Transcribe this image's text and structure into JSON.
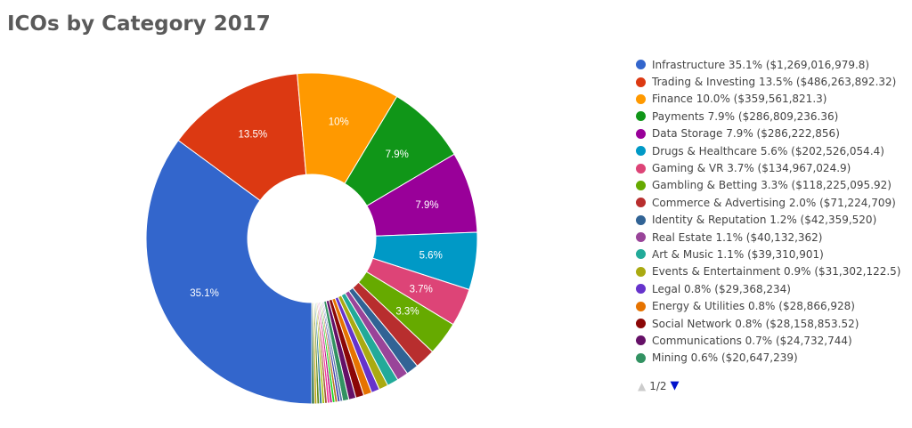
{
  "title": "ICOs by Category 2017",
  "chart_data": {
    "type": "pie",
    "donut": true,
    "title": "ICOs by Category 2017",
    "legend_position": "right",
    "slices": [
      {
        "name": "Infrastructure",
        "percent": 35.1,
        "value": "$1,269,016,979.8",
        "color": "#3366cc",
        "label": "35.1%"
      },
      {
        "name": "Trading & Investing",
        "percent": 13.5,
        "value": "$486,263,892.32",
        "color": "#dc3912",
        "label": "13.5%"
      },
      {
        "name": "Finance",
        "percent": 10.0,
        "value": "$359,561,821.3",
        "color": "#ff9900",
        "label": "10%"
      },
      {
        "name": "Payments",
        "percent": 7.9,
        "value": "$286,809,236.36",
        "color": "#109618",
        "label": "7.9%"
      },
      {
        "name": "Data Storage",
        "percent": 7.9,
        "value": "$286,222,856",
        "color": "#990099",
        "label": "7.9%"
      },
      {
        "name": "Drugs & Healthcare",
        "percent": 5.6,
        "value": "$202,526,054.4",
        "color": "#0099c6",
        "label": "5.6%"
      },
      {
        "name": "Gaming & VR",
        "percent": 3.7,
        "value": "$134,967,024.9",
        "color": "#dd4477",
        "label": "3.7%"
      },
      {
        "name": "Gambling & Betting",
        "percent": 3.3,
        "value": "$118,225,095.92",
        "color": "#66aa00",
        "label": "3.3%"
      },
      {
        "name": "Commerce & Advertising",
        "percent": 2.0,
        "value": "$71,224,709",
        "color": "#b82e2e",
        "label": ""
      },
      {
        "name": "Identity & Reputation",
        "percent": 1.2,
        "value": "$42,359,520",
        "color": "#316395",
        "label": ""
      },
      {
        "name": "Real Estate",
        "percent": 1.1,
        "value": "$40,132,362",
        "color": "#994499",
        "label": ""
      },
      {
        "name": "Art & Music",
        "percent": 1.1,
        "value": "$39,310,901",
        "color": "#22aa99",
        "label": ""
      },
      {
        "name": "Events & Entertainment",
        "percent": 0.9,
        "value": "$31,302,122.5",
        "color": "#aaaa11",
        "label": ""
      },
      {
        "name": "Legal",
        "percent": 0.8,
        "value": "$29,368,234",
        "color": "#6633cc",
        "label": ""
      },
      {
        "name": "Energy & Utilities",
        "percent": 0.8,
        "value": "$28,866,928",
        "color": "#e67300",
        "label": ""
      },
      {
        "name": "Social Network",
        "percent": 0.8,
        "value": "$28,158,853.52",
        "color": "#8b0707",
        "label": ""
      },
      {
        "name": "Communications",
        "percent": 0.7,
        "value": "$24,732,744",
        "color": "#651067",
        "label": ""
      },
      {
        "name": "Mining",
        "percent": 0.6,
        "value": "$20,647,239",
        "color": "#329262",
        "label": ""
      }
    ],
    "hidden_slices": [
      {
        "color": "#5574a6"
      },
      {
        "color": "#3b3eac"
      },
      {
        "color": "#b77322"
      },
      {
        "color": "#16d620"
      },
      {
        "color": "#b91383"
      },
      {
        "color": "#f4359e"
      },
      {
        "color": "#9c5935"
      },
      {
        "color": "#a9c413"
      },
      {
        "color": "#2a778d"
      },
      {
        "color": "#668d1c"
      },
      {
        "color": "#bea413"
      },
      {
        "color": "#0c5922"
      }
    ]
  },
  "legend": {
    "items": [
      "Infrastructure 35.1% ($1,269,016,979.8)",
      "Trading & Investing 13.5% ($486,263,892.32)",
      "Finance 10.0% ($359,561,821.3)",
      "Payments 7.9% ($286,809,236.36)",
      "Data Storage 7.9% ($286,222,856)",
      "Drugs & Healthcare 5.6% ($202,526,054.4)",
      "Gaming & VR 3.7% ($134,967,024.9)",
      "Gambling & Betting 3.3% ($118,225,095.92)",
      "Commerce & Advertising 2.0% ($71,224,709)",
      "Identity & Reputation 1.2% ($42,359,520)",
      "Real Estate 1.1% ($40,132,362)",
      "Art & Music 1.1% ($39,310,901)",
      "Events & Entertainment 0.9% ($31,302,122.5)",
      "Legal 0.8% ($29,368,234)",
      "Energy & Utilities 0.8% ($28,866,928)",
      "Social Network 0.8% ($28,158,853.52)",
      "Communications 0.7% ($24,732,744)",
      "Mining 0.6% ($20,647,239)"
    ],
    "pager": {
      "text": "1/2",
      "prev_icon": "triangle-up-icon",
      "next_icon": "triangle-down-icon"
    }
  }
}
